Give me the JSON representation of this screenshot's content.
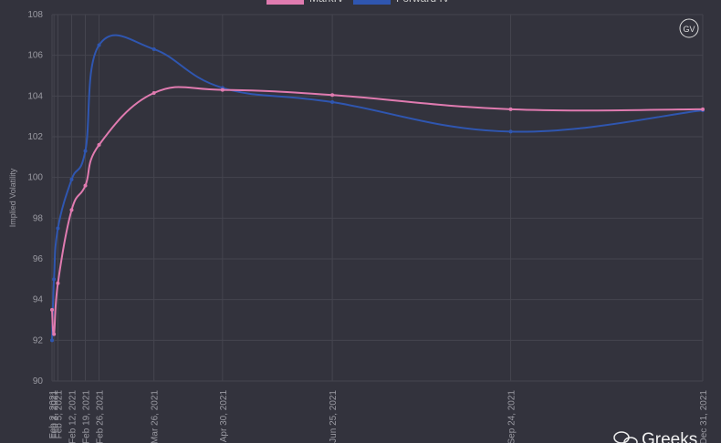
{
  "chart_data": {
    "type": "line",
    "y_label": "Implied Volatility",
    "x": [
      "Feb 2, 2021",
      "Feb 3, 2021",
      "Feb 5, 2021",
      "Feb 12, 2021",
      "Feb 19, 2021",
      "Feb 26, 2021",
      "Mar 26, 2021",
      "Apr 30, 2021",
      "Jun 25, 2021",
      "Sep 24, 2021",
      "Dec 31, 2021"
    ],
    "series": [
      {
        "name": "MarkIV",
        "color": "#e07bb0",
        "values": [
          93.5,
          92.3,
          94.8,
          98.4,
          99.6,
          101.6,
          104.15,
          104.3,
          104.05,
          103.35,
          103.35
        ]
      },
      {
        "name": "Forward IV",
        "color": "#2f56b0",
        "values": [
          92.0,
          95.0,
          97.5,
          99.9,
          101.3,
          106.5,
          106.3,
          104.4,
          103.7,
          102.25,
          103.3
        ]
      }
    ],
    "xlim": [
      "Feb 2, 2021",
      "Dec 31, 2021"
    ],
    "ylim": [
      90,
      108
    ],
    "yticks": [
      90,
      92,
      94,
      96,
      98,
      100,
      102,
      104,
      106,
      108
    ],
    "grid": true,
    "watermarks": [
      "GV",
      "Greeks"
    ]
  }
}
